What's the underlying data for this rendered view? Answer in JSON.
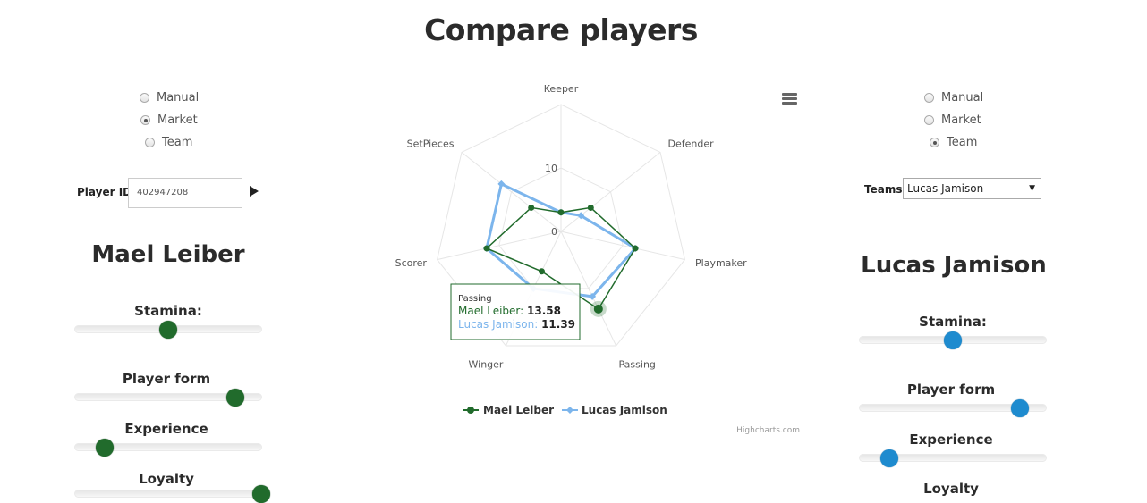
{
  "page": {
    "title": "Compare players"
  },
  "left": {
    "radio_options": [
      {
        "label": "Manual",
        "checked": false
      },
      {
        "label": "Market",
        "checked": true
      },
      {
        "label": "Team",
        "checked": false
      }
    ],
    "player_id_label": "Player ID",
    "player_id_value": "402947208",
    "player_name": "Mael Leiber",
    "sliders": [
      {
        "label": "Stamina:",
        "value": 0.5
      },
      {
        "label": "Player form",
        "value": 0.86
      },
      {
        "label": "Experience",
        "value": 0.16
      },
      {
        "label": "Loyalty",
        "value": 1.0
      }
    ]
  },
  "right": {
    "radio_options": [
      {
        "label": "Manual",
        "checked": false
      },
      {
        "label": "Market",
        "checked": false
      },
      {
        "label": "Team",
        "checked": true
      }
    ],
    "teams_label": "Teams",
    "teams_selected": "Lucas Jamison",
    "player_name": "Lucas Jamison",
    "sliders": [
      {
        "label": "Stamina:",
        "value": 0.5
      },
      {
        "label": "Player form",
        "value": 0.86
      },
      {
        "label": "Experience",
        "value": 0.16
      },
      {
        "label": "Loyalty",
        "value": null
      }
    ]
  },
  "chart_data": {
    "type": "radar",
    "axes": [
      "Keeper",
      "Defender",
      "Playmaker",
      "Passing",
      "Winger",
      "Scorer",
      "SetPieces"
    ],
    "yticks": [
      "0",
      "10"
    ],
    "ylim": [
      0,
      20
    ],
    "series": [
      {
        "name": "Mael Leiber",
        "color": "#216b2c",
        "values": [
          3,
          6,
          12,
          13.58,
          7,
          12,
          6
        ]
      },
      {
        "name": "Lucas Jamison",
        "color": "#7cb5ec",
        "values": [
          3,
          4,
          12,
          11.39,
          10,
          12,
          12
        ]
      }
    ],
    "tooltip": {
      "category": "Passing",
      "rows": [
        {
          "name": "Mael Leiber",
          "value": "13.58",
          "color": "#216b2c"
        },
        {
          "name": "Lucas Jamison",
          "value": "11.39",
          "color": "#7cb5ec"
        }
      ]
    },
    "credits": "Highcharts.com"
  },
  "colors": {
    "green": "#216b2c",
    "blue": "#1e8bcf",
    "series_blue": "#7cb5ec"
  },
  "icons": {
    "menu": "hamburger-icon",
    "submit": "play-icon"
  }
}
